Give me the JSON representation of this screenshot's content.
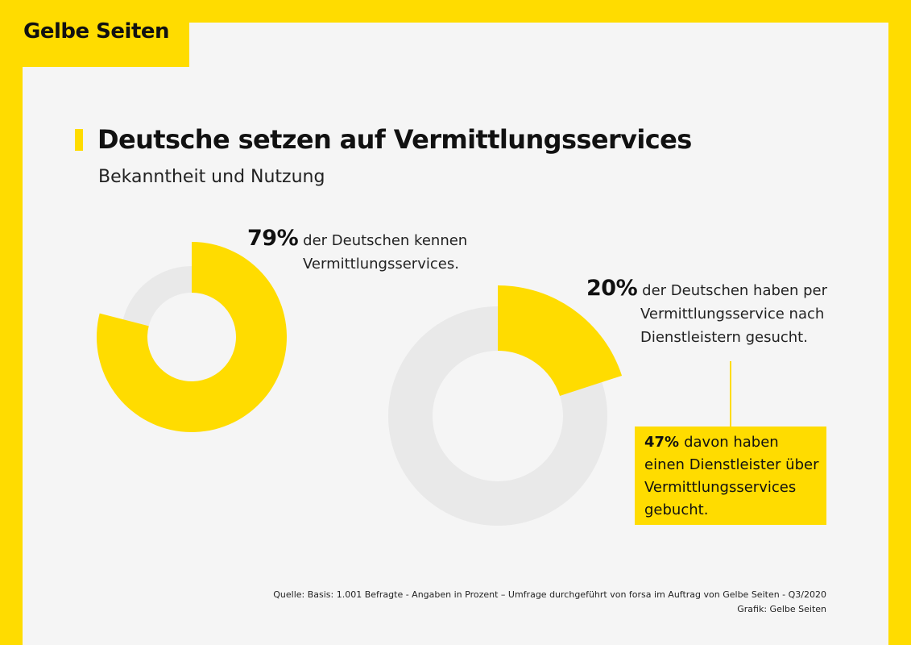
{
  "brand": {
    "logo": "Gelbe Seiten"
  },
  "title": "Deutsche setzen auf Vermittlungsservices",
  "subtitle": "Bekanntheit und Nutzung",
  "colors": {
    "accent": "#ffdc00",
    "track": "#e9e9e9",
    "panel": "#f5f5f5"
  },
  "chart_data": [
    {
      "type": "pie",
      "variant": "donut",
      "title": "",
      "values": [
        79
      ],
      "max": 100,
      "label_value": "79%",
      "label_text_line1": "der Deutschen kennen",
      "label_text_line2": "Vermittlungsservices."
    },
    {
      "type": "pie",
      "variant": "donut",
      "title": "",
      "values": [
        20
      ],
      "max": 100,
      "label_value": "20%",
      "label_text_line1": "der Deutschen haben per",
      "label_text_line2": "Vermittlungsservice nach",
      "label_text_line3": "Dienstleistern gesucht.",
      "detail": {
        "value": 47,
        "label_value": "47%",
        "line1": "davon haben",
        "line2": "einen Dienstleister über",
        "line3": "Vermittlungsservices",
        "line4": "gebucht."
      }
    }
  ],
  "footer": {
    "source": "Quelle: Basis: 1.001 Befragte - Angaben in Prozent – Umfrage durchgeführt von forsa im Auftrag von Gelbe Seiten - Q3/2020",
    "credit": "Grafik: Gelbe Seiten"
  }
}
